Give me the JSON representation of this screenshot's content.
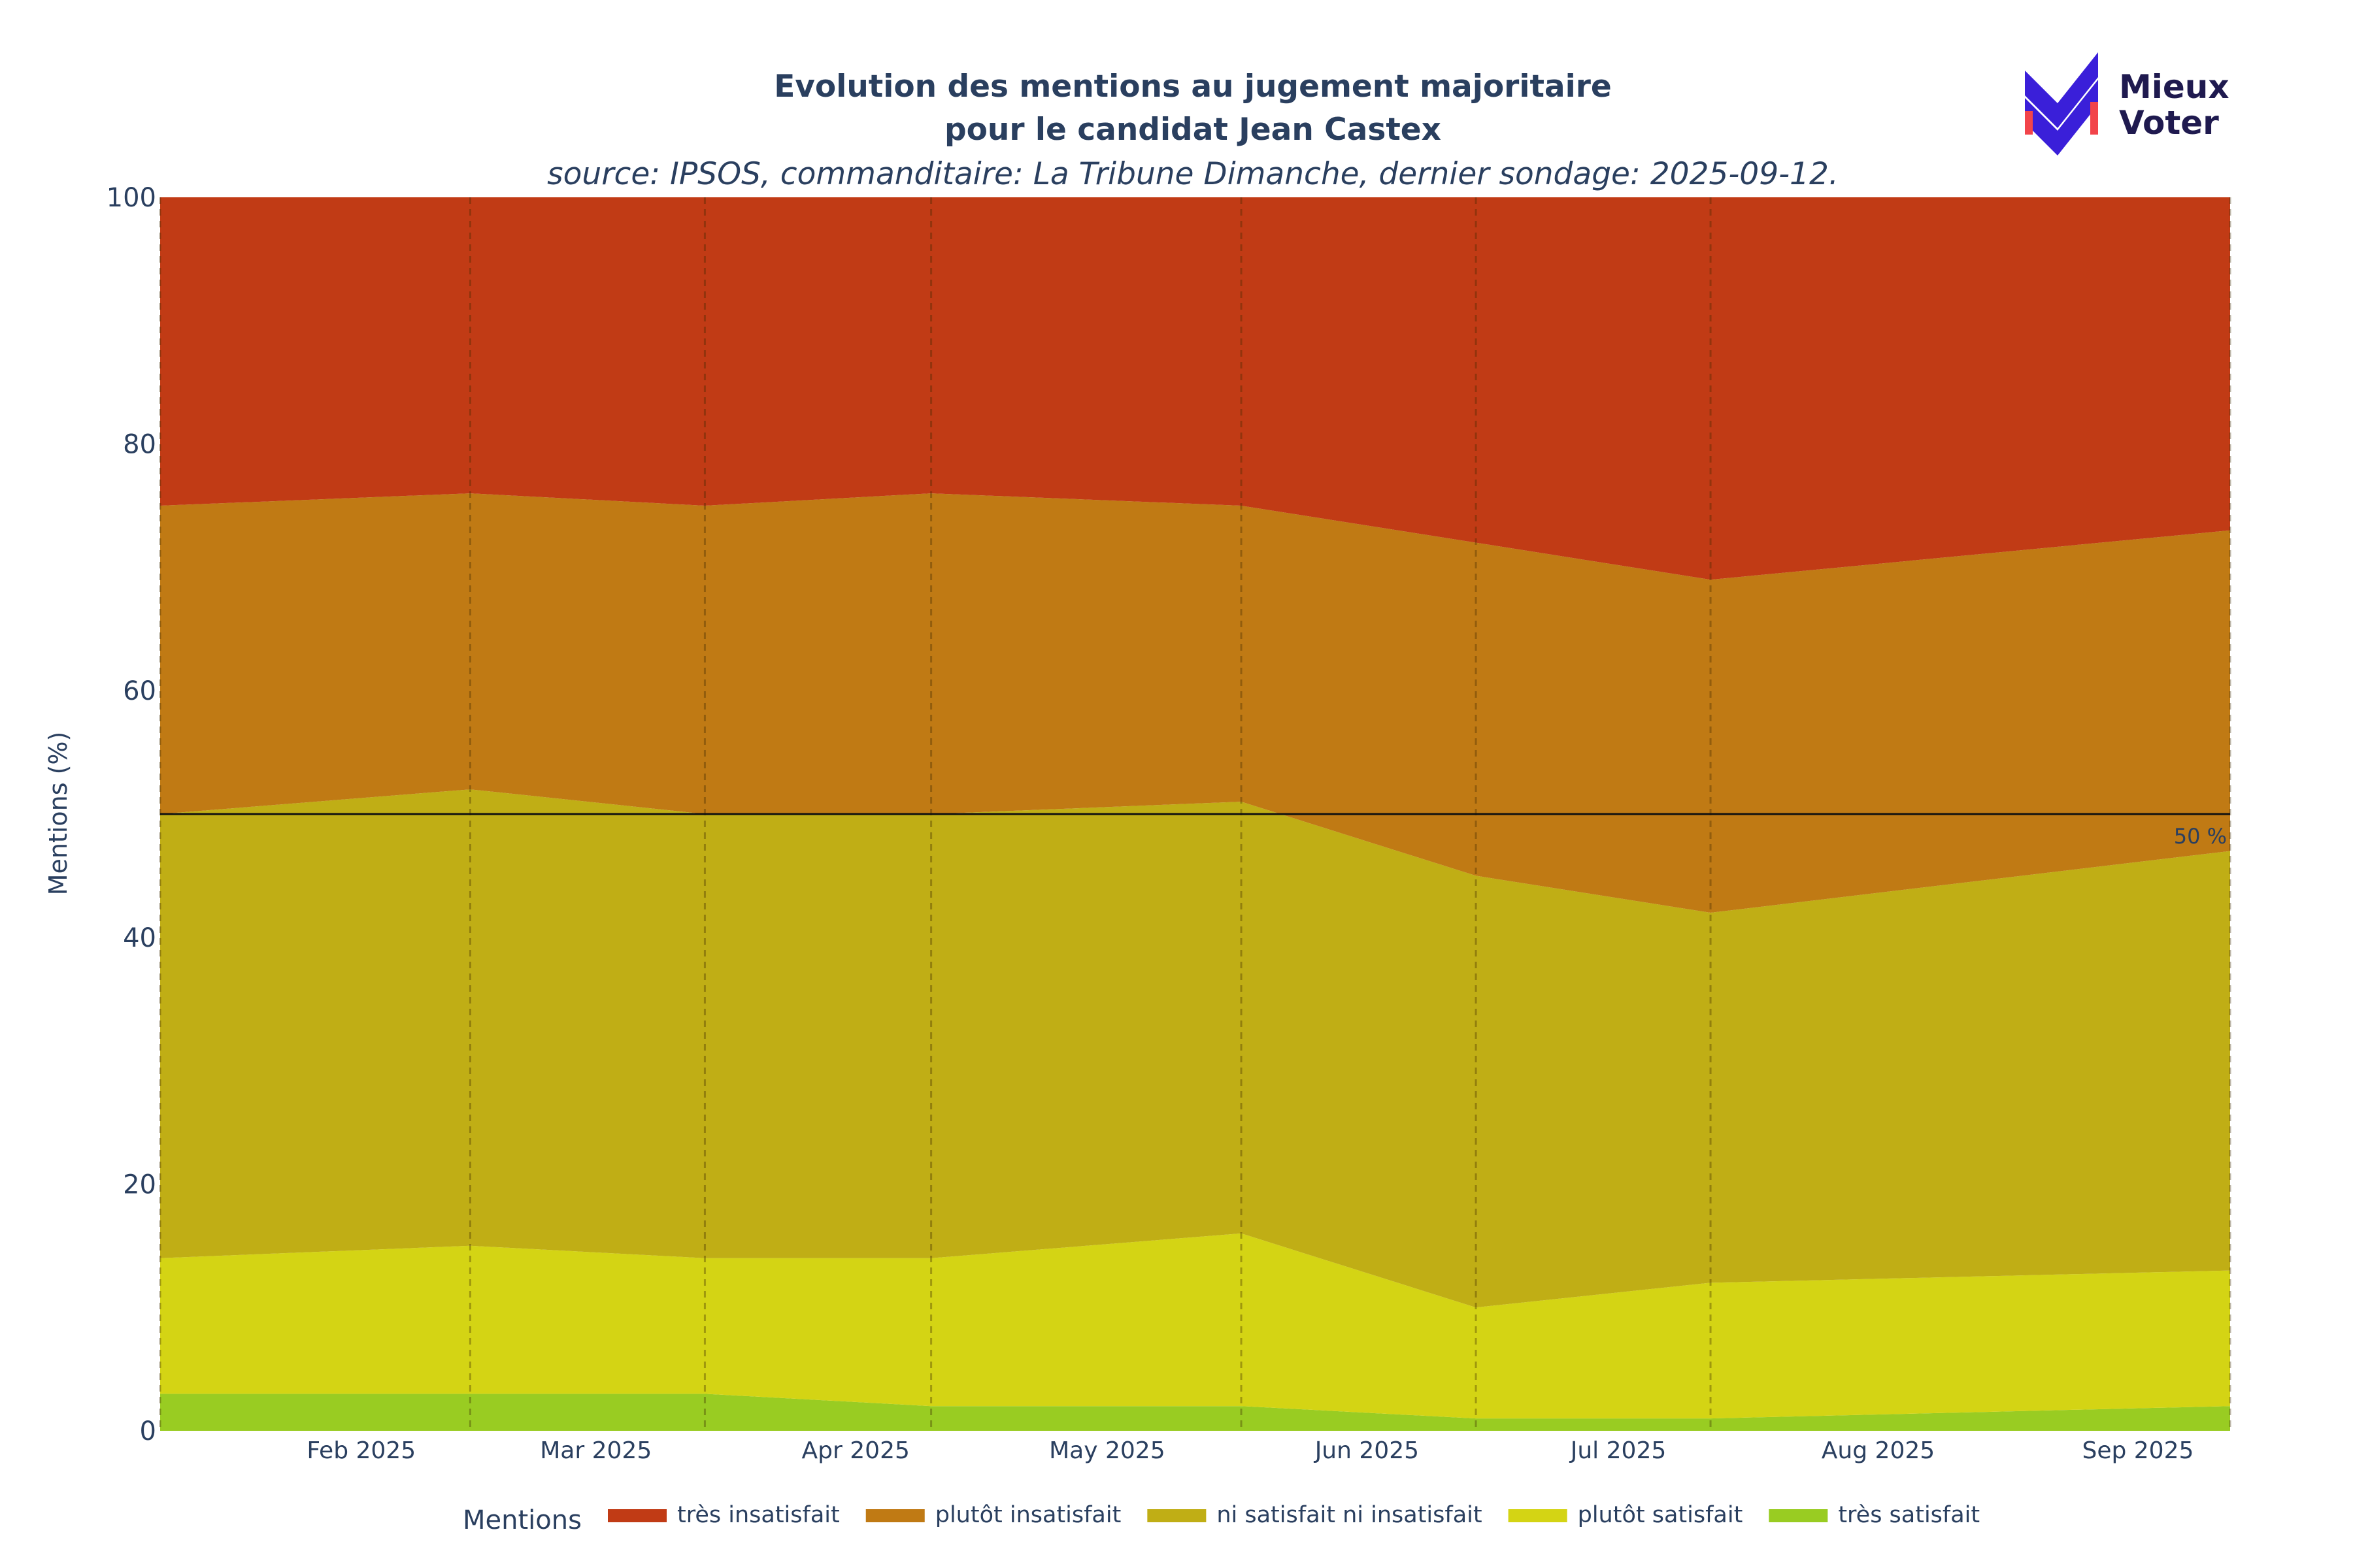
{
  "title": {
    "line1": "Evolution des mentions au jugement majoritaire",
    "line2": "pour le candidat Jean Castex",
    "subtitle": "source: IPSOS, commanditaire: La Tribune Dimanche, dernier sondage: 2025-09-12."
  },
  "logo": {
    "line1": "Mieux",
    "line2": "Voter",
    "icon": "mieux-voter-check-logo"
  },
  "reference_line": {
    "value": 50,
    "label": "50 %"
  },
  "legend": {
    "title": "Mentions",
    "placement": "bottom-center"
  },
  "chart_data": {
    "type": "area",
    "stacked": true,
    "title": "Evolution des mentions au jugement majoritaire pour le candidat Jean Castex",
    "ylabel": "Mentions (%)",
    "xlabel": "",
    "ylim": [
      0,
      100
    ],
    "xlim": [
      "2025-01-08",
      "2025-09-12"
    ],
    "yticks": [
      0,
      20,
      40,
      60,
      80,
      100
    ],
    "xticks": [
      {
        "date": "2025-02-01",
        "label": "Feb 2025"
      },
      {
        "date": "2025-03-01",
        "label": "Mar 2025"
      },
      {
        "date": "2025-04-01",
        "label": "Apr 2025"
      },
      {
        "date": "2025-05-01",
        "label": "May 2025"
      },
      {
        "date": "2025-06-01",
        "label": "Jun 2025"
      },
      {
        "date": "2025-07-01",
        "label": "Jul 2025"
      },
      {
        "date": "2025-08-01",
        "label": "Aug 2025"
      },
      {
        "date": "2025-09-01",
        "label": "Sep 2025"
      }
    ],
    "x": [
      "2025-01-08",
      "2025-02-14",
      "2025-03-14",
      "2025-04-10",
      "2025-05-17",
      "2025-06-14",
      "2025-07-12",
      "2025-09-12"
    ],
    "series": [
      {
        "name": "très satisfait",
        "color": "#99cc22",
        "values": [
          3,
          3,
          3,
          2,
          2,
          1,
          1,
          2
        ]
      },
      {
        "name": "plutôt satisfait",
        "color": "#d4d414",
        "values": [
          11,
          12,
          11,
          12,
          14,
          9,
          11,
          11
        ]
      },
      {
        "name": "ni satisfait ni insatisfait",
        "color": "#c0ae15",
        "values": [
          36,
          37,
          36,
          36,
          35,
          35,
          30,
          34
        ]
      },
      {
        "name": "plutôt insatisfait",
        "color": "#c07a14",
        "values": [
          25,
          24,
          25,
          26,
          24,
          27,
          27,
          26
        ]
      },
      {
        "name": "très insatisfait",
        "color": "#c13b15",
        "values": [
          25,
          24,
          25,
          24,
          25,
          28,
          31,
          27
        ]
      }
    ],
    "grid": false,
    "vertical_dashed_lines_at_poll_dates": true,
    "legend_order": [
      "très insatisfait",
      "plutôt insatisfait",
      "ni satisfait ni insatisfait",
      "plutôt satisfait",
      "très satisfait"
    ]
  }
}
